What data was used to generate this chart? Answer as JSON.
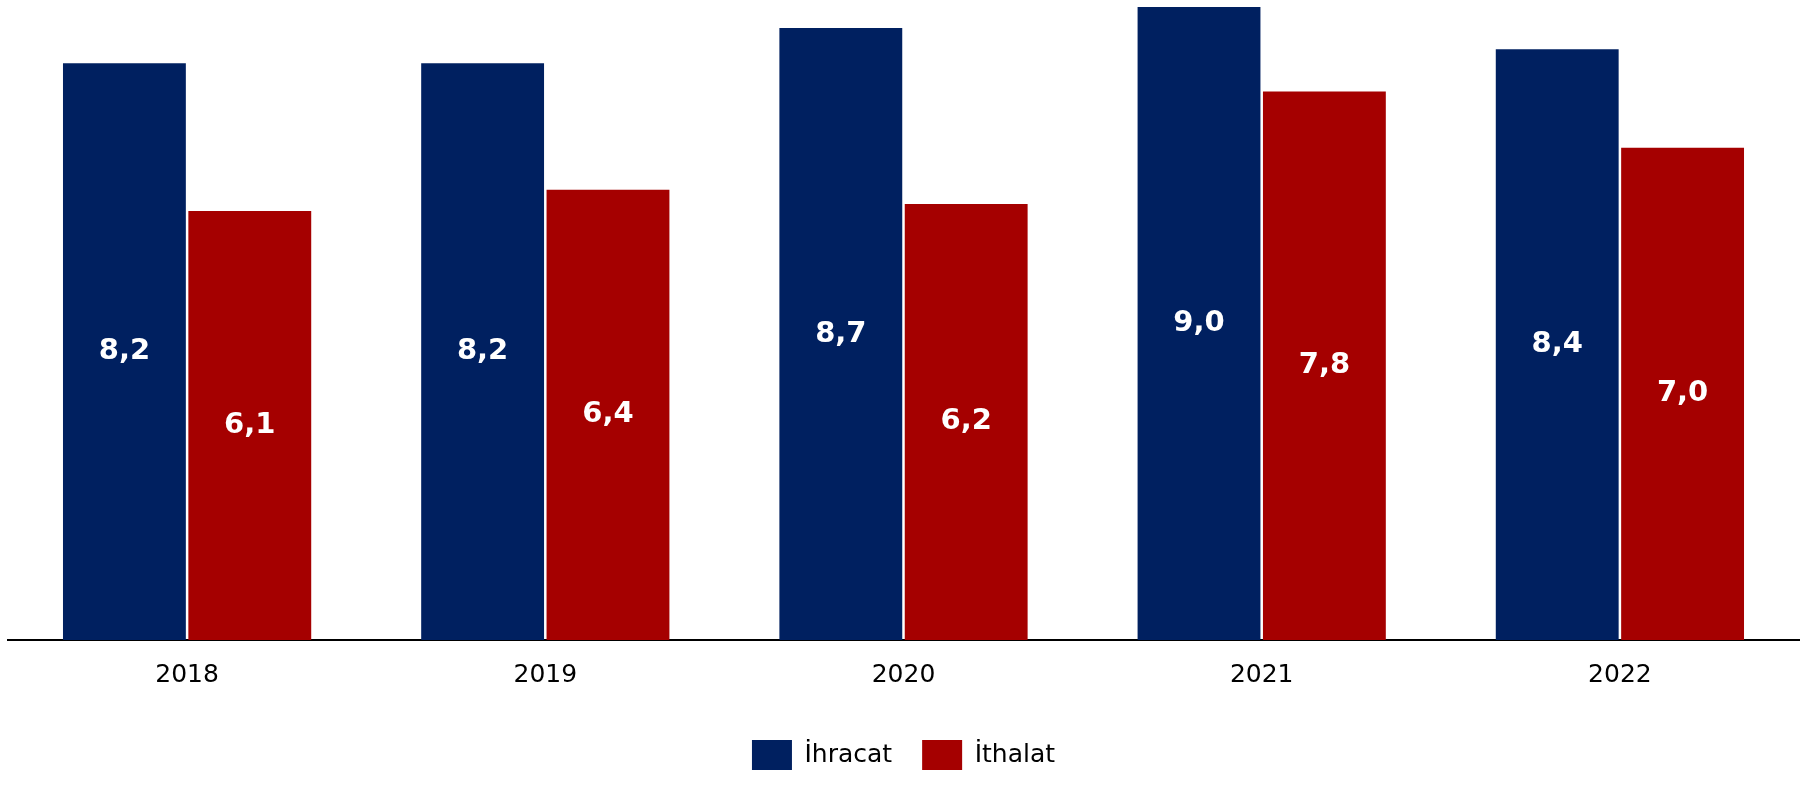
{
  "chart_data": {
    "type": "bar",
    "categories": [
      "2018",
      "2019",
      "2020",
      "2021",
      "2022"
    ],
    "series": [
      {
        "name": "İhracat",
        "color": "#002060",
        "values": [
          8.2,
          8.2,
          8.7,
          9.0,
          8.4
        ],
        "value_labels": [
          "8,2",
          "8,2",
          "8,7",
          "9,0",
          "8,4"
        ]
      },
      {
        "name": "İthalat",
        "color": "#a50000",
        "values": [
          6.1,
          6.4,
          6.2,
          7.8,
          7.0
        ],
        "value_labels": [
          "6,1",
          "6,4",
          "6,2",
          "7,8",
          "7,0"
        ]
      }
    ],
    "tick_labels": "x",
    "grid": false,
    "legend": "bottom"
  }
}
